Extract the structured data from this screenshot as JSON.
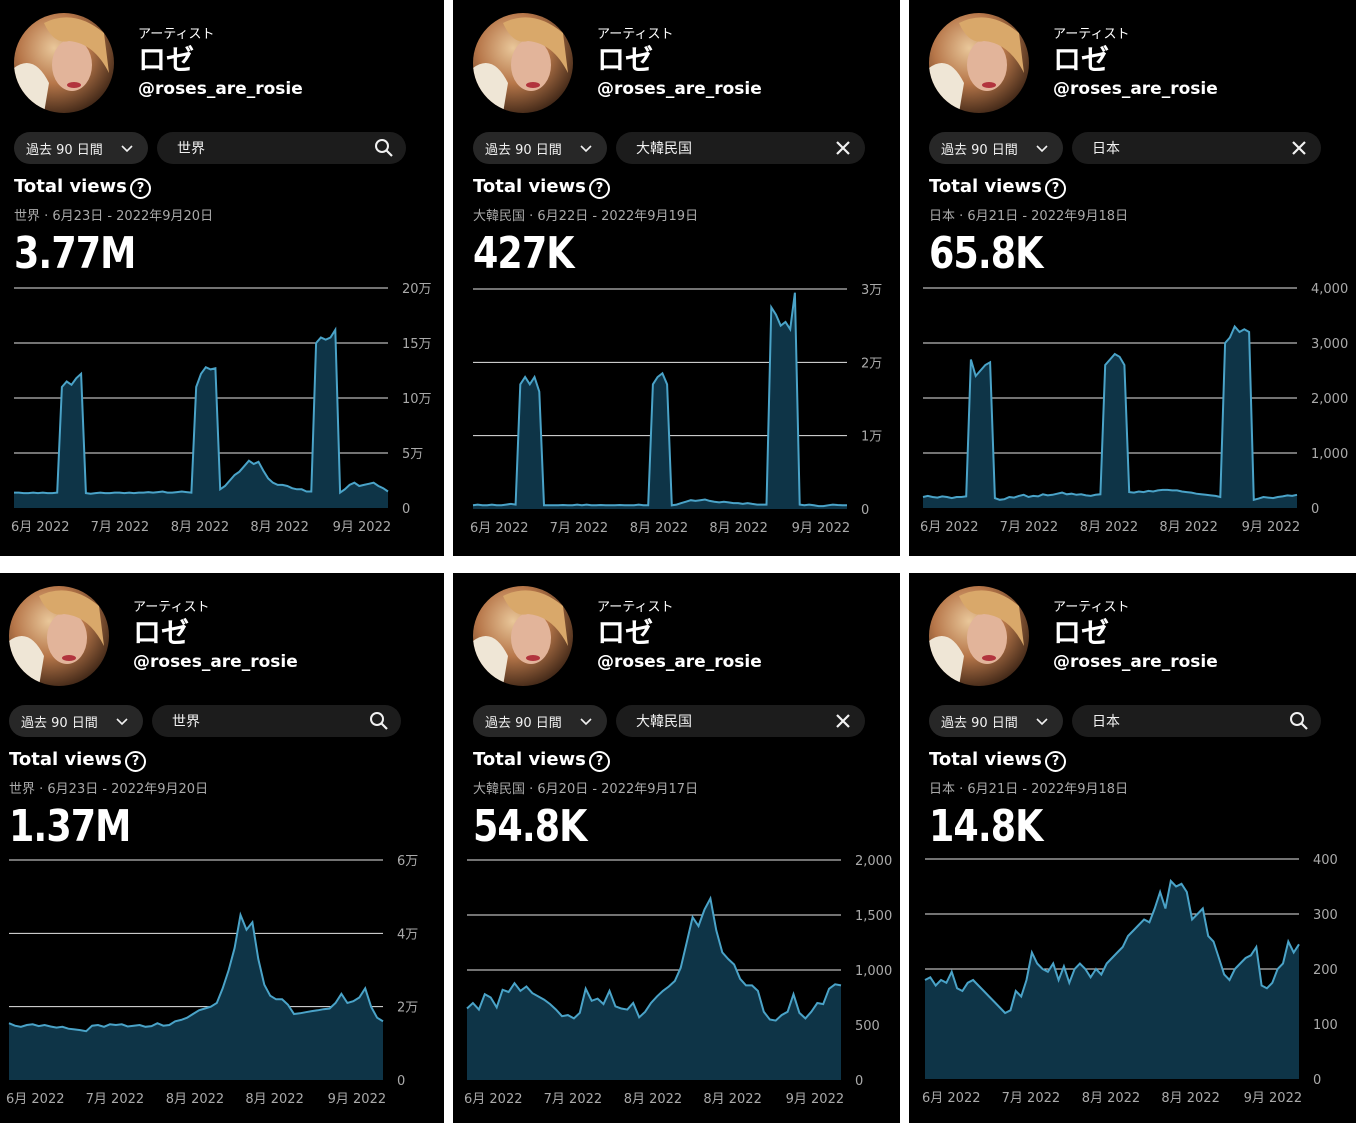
{
  "profile": {
    "role": "アーティスト",
    "name": "ロゼ",
    "handle": "@roses_are_rosie"
  },
  "colors": {
    "line": "#4aa3c8",
    "fill": "#0e3447",
    "grid": "#e6e6e6",
    "background": "#000000"
  },
  "icons": {
    "search": "search-icon",
    "clear": "close-icon",
    "dropdown": "chevron-down-icon",
    "help": "help-circle-icon"
  },
  "panels": [
    {
      "period": "過去 90 日間",
      "region": "世界",
      "search_icon": "search",
      "title": "Total views",
      "help": "?",
      "range": "世界 · 6月23日 - 2022年9月20日",
      "total": "3.77M"
    },
    {
      "period": "過去 90 日間",
      "region": "大韓民国",
      "search_icon": "clear",
      "title": "Total views",
      "help": "?",
      "range": "大韓民国 · 6月22日 - 2022年9月19日",
      "total": "427K"
    },
    {
      "period": "過去 90 日間",
      "region": "日本",
      "search_icon": "clear",
      "title": "Total views",
      "help": "?",
      "range": "日本 · 6月21日 - 2022年9月18日",
      "total": "65.8K"
    },
    {
      "period": "過去 90 日間",
      "region": "世界",
      "search_icon": "search",
      "title": "Total views",
      "help": "?",
      "range": "世界 · 6月23日 - 2022年9月20日",
      "total": "1.37M"
    },
    {
      "period": "過去 90 日間",
      "region": "大韓民国",
      "search_icon": "clear",
      "title": "Total views",
      "help": "?",
      "range": "大韓民国 · 6月20日 - 2022年9月17日",
      "total": "54.8K"
    },
    {
      "period": "過去 90 日間",
      "region": "日本",
      "search_icon": "search",
      "title": "Total views",
      "help": "?",
      "range": "日本 · 6月21日 - 2022年9月18日",
      "total": "14.8K"
    }
  ],
  "chart_data": [
    {
      "type": "area",
      "ylim": [
        0,
        200000
      ],
      "yticks": [
        {
          "v": 0,
          "label": "0"
        },
        {
          "v": 50000,
          "label": "5万"
        },
        {
          "v": 100000,
          "label": "10万"
        },
        {
          "v": 150000,
          "label": "15万"
        },
        {
          "v": 200000,
          "label": "20万"
        }
      ],
      "xticks": [
        "6月 2022",
        "7月 2022",
        "8月 2022",
        "8月 2022",
        "9月 2022"
      ],
      "values": [
        14000,
        14000,
        13500,
        13500,
        14000,
        13500,
        14000,
        13500,
        13500,
        14000,
        110000,
        115000,
        112000,
        118000,
        122000,
        13500,
        13000,
        13500,
        14000,
        13500,
        13500,
        14000,
        14000,
        13500,
        14000,
        13500,
        14000,
        14000,
        14500,
        14000,
        14500,
        15000,
        14000,
        14000,
        14500,
        15000,
        14500,
        14000,
        110000,
        122000,
        128000,
        126000,
        127000,
        17000,
        20000,
        25000,
        30000,
        33000,
        38000,
        43000,
        40000,
        42000,
        34000,
        27000,
        23000,
        21000,
        21000,
        20000,
        18000,
        17000,
        17000,
        15000,
        15000,
        150000,
        155000,
        153000,
        155000,
        162000,
        14000,
        17000,
        21000,
        23000,
        20000,
        21000,
        22000,
        23000,
        20000,
        18000,
        15000
      ]
    },
    {
      "type": "area",
      "ylim": [
        0,
        30000
      ],
      "yticks": [
        {
          "v": 0,
          "label": "0"
        },
        {
          "v": 10000,
          "label": "1万"
        },
        {
          "v": 20000,
          "label": "2万"
        },
        {
          "v": 30000,
          "label": "3万"
        }
      ],
      "xticks": [
        "6月 2022",
        "7月 2022",
        "8月 2022",
        "8月 2022",
        "9月 2022"
      ],
      "values": [
        500,
        600,
        500,
        500,
        600,
        500,
        500,
        600,
        700,
        600,
        17000,
        18000,
        17000,
        18000,
        16000,
        500,
        500,
        500,
        500,
        550,
        500,
        500,
        600,
        500,
        600,
        500,
        500,
        550,
        500,
        500,
        500,
        550,
        500,
        500,
        500,
        600,
        500,
        500,
        17000,
        18000,
        18500,
        17000,
        500,
        600,
        800,
        1000,
        1200,
        1100,
        1200,
        1300,
        1100,
        1000,
        900,
        1000,
        900,
        800,
        800,
        700,
        800,
        700,
        600,
        600,
        600,
        27500,
        26500,
        25000,
        25500,
        24500,
        29500,
        600,
        500,
        600,
        500,
        400,
        400,
        500,
        600,
        550,
        500,
        500
      ]
    },
    {
      "type": "area",
      "ylim": [
        0,
        4000
      ],
      "yticks": [
        {
          "v": 0,
          "label": "0"
        },
        {
          "v": 1000,
          "label": "1,000"
        },
        {
          "v": 2000,
          "label": "2,000"
        },
        {
          "v": 3000,
          "label": "3,000"
        },
        {
          "v": 4000,
          "label": "4,000"
        }
      ],
      "xticks": [
        "6月 2022",
        "7月 2022",
        "8月 2022",
        "8月 2022",
        "9月 2022"
      ],
      "values": [
        200,
        220,
        200,
        190,
        210,
        200,
        180,
        200,
        200,
        210,
        2700,
        2400,
        2500,
        2600,
        2650,
        180,
        150,
        160,
        200,
        190,
        220,
        240,
        200,
        220,
        210,
        250,
        230,
        240,
        260,
        280,
        250,
        260,
        240,
        250,
        230,
        220,
        240,
        250,
        2600,
        2700,
        2800,
        2750,
        2600,
        290,
        280,
        300,
        290,
        310,
        300,
        320,
        330,
        330,
        320,
        320,
        300,
        290,
        280,
        260,
        250,
        240,
        230,
        220,
        200,
        3000,
        3100,
        3300,
        3200,
        3250,
        3200,
        150,
        170,
        200,
        190,
        180,
        200,
        210,
        230,
        220,
        240
      ]
    },
    {
      "type": "area",
      "ylim": [
        0,
        60000
      ],
      "yticks": [
        {
          "v": 0,
          "label": "0"
        },
        {
          "v": 20000,
          "label": "2万"
        },
        {
          "v": 40000,
          "label": "4万"
        },
        {
          "v": 60000,
          "label": "6万"
        }
      ],
      "xticks": [
        "6月 2022",
        "7月 2022",
        "8月 2022",
        "8月 2022",
        "9月 2022"
      ],
      "values": [
        15500,
        14800,
        14500,
        15000,
        15200,
        14700,
        15000,
        14600,
        14300,
        14500,
        14000,
        13800,
        13600,
        13300,
        14800,
        15000,
        14500,
        15200,
        15000,
        15200,
        14600,
        14800,
        15000,
        14500,
        14700,
        15500,
        14800,
        15000,
        16000,
        16400,
        17000,
        18000,
        19000,
        19500,
        20000,
        21000,
        25000,
        30000,
        36000,
        45000,
        41000,
        43000,
        33000,
        26000,
        23000,
        22000,
        22000,
        20500,
        18000,
        18200,
        18500,
        18800,
        19000,
        19300,
        19500,
        21000,
        23500,
        21000,
        21500,
        22500,
        25000,
        20000,
        17000,
        16000
      ]
    },
    {
      "type": "area",
      "ylim": [
        0,
        2000
      ],
      "yticks": [
        {
          "v": 0,
          "label": "0"
        },
        {
          "v": 500,
          "label": "500"
        },
        {
          "v": 1000,
          "label": "1,000"
        },
        {
          "v": 1500,
          "label": "1,500"
        },
        {
          "v": 2000,
          "label": "2,000"
        }
      ],
      "xticks": [
        "6月 2022",
        "7月 2022",
        "8月 2022",
        "8月 2022",
        "9月 2022"
      ],
      "values": [
        650,
        700,
        640,
        780,
        750,
        660,
        820,
        800,
        880,
        810,
        850,
        790,
        760,
        730,
        690,
        640,
        580,
        590,
        560,
        610,
        830,
        720,
        740,
        690,
        810,
        670,
        650,
        640,
        700,
        570,
        620,
        700,
        760,
        810,
        850,
        900,
        1020,
        1250,
        1480,
        1400,
        1550,
        1650,
        1360,
        1160,
        1100,
        1050,
        920,
        860,
        860,
        810,
        620,
        550,
        540,
        590,
        620,
        780,
        610,
        560,
        620,
        700,
        690,
        830,
        870,
        860
      ]
    },
    {
      "type": "area",
      "ylim": [
        0,
        400
      ],
      "yticks": [
        {
          "v": 0,
          "label": "0"
        },
        {
          "v": 100,
          "label": "100"
        },
        {
          "v": 200,
          "label": "200"
        },
        {
          "v": 300,
          "label": "300"
        },
        {
          "v": 400,
          "label": "400"
        }
      ],
      "xticks": [
        "6月 2022",
        "7月 2022",
        "8月 2022",
        "8月 2022",
        "9月 2022"
      ],
      "values": [
        180,
        185,
        170,
        180,
        175,
        195,
        165,
        160,
        175,
        180,
        170,
        160,
        150,
        140,
        130,
        120,
        125,
        160,
        150,
        180,
        230,
        210,
        200,
        195,
        210,
        180,
        205,
        175,
        200,
        210,
        200,
        185,
        200,
        190,
        210,
        220,
        230,
        240,
        260,
        270,
        280,
        290,
        285,
        310,
        340,
        310,
        360,
        350,
        355,
        340,
        290,
        300,
        310,
        260,
        250,
        220,
        190,
        180,
        200,
        210,
        220,
        225,
        240,
        170,
        165,
        175,
        200,
        210,
        250,
        230,
        245
      ]
    }
  ]
}
